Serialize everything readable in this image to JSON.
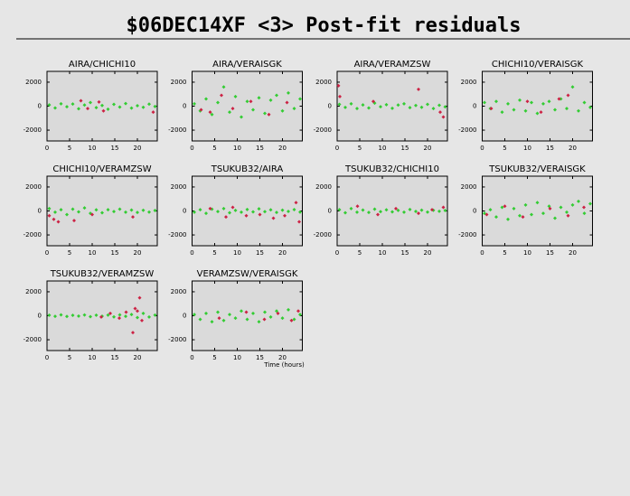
{
  "title": "$06DEC14XF <3> Post-fit residuals",
  "chart_data": [
    {
      "type": "scatter",
      "title": "AIRA/CHICHI10",
      "xlim": [
        0,
        24.4
      ],
      "ylim": [
        -2900,
        2900
      ],
      "xticks": [
        0,
        5,
        10,
        15,
        20
      ],
      "yticks": [
        2000,
        0,
        -2000
      ],
      "series": [
        {
          "color": "#33cc33",
          "x": [
            0.5,
            1.8,
            3.1,
            4.4,
            5.7,
            7,
            8.3,
            9.6,
            10.9,
            12.2,
            13.5,
            14.8,
            16.1,
            17.4,
            18.7,
            20,
            21.3,
            22.6,
            23.9
          ],
          "values": [
            100,
            -150,
            200,
            -50,
            180,
            -220,
            90,
            300,
            -120,
            60,
            -250,
            150,
            -80,
            220,
            -160,
            40,
            -90,
            170,
            -30
          ]
        },
        {
          "color": "#cc2244",
          "x": [
            7.5,
            9,
            11.5,
            12.5,
            23.5
          ],
          "values": [
            450,
            -200,
            350,
            -400,
            -500
          ]
        }
      ]
    },
    {
      "type": "scatter",
      "title": "AIRA/VERAISGK",
      "xlim": [
        0,
        24.4
      ],
      "ylim": [
        -2900,
        2900
      ],
      "xticks": [
        0,
        5,
        10,
        15,
        20
      ],
      "yticks": [
        2000,
        0,
        -2000
      ],
      "series": [
        {
          "color": "#33cc33",
          "x": [
            0.5,
            1.8,
            3.1,
            4.4,
            5.7,
            7,
            8.3,
            9.6,
            10.9,
            12.2,
            13.5,
            14.8,
            16.1,
            17.4,
            18.7,
            20,
            21.3,
            22.6,
            23.9
          ],
          "values": [
            200,
            -400,
            600,
            -700,
            300,
            1600,
            -500,
            800,
            -900,
            400,
            -300,
            700,
            -600,
            500,
            900,
            -400,
            1100,
            -200,
            600
          ]
        },
        {
          "color": "#cc2244",
          "x": [
            2,
            4,
            6.5,
            9,
            13,
            17,
            21
          ],
          "values": [
            -300,
            -500,
            900,
            -200,
            400,
            -700,
            300
          ]
        }
      ]
    },
    {
      "type": "scatter",
      "title": "AIRA/VERAMZSW",
      "xlim": [
        0,
        24.4
      ],
      "ylim": [
        -2900,
        2900
      ],
      "xticks": [
        0,
        5,
        10,
        15,
        20
      ],
      "yticks": [
        2000,
        0,
        -2000
      ],
      "series": [
        {
          "color": "#33cc33",
          "x": [
            0.5,
            1.8,
            3.1,
            4.4,
            5.7,
            7,
            8.3,
            9.6,
            10.9,
            12.2,
            13.5,
            14.8,
            16.1,
            17.4,
            18.7,
            20,
            21.3,
            22.6,
            23.9
          ],
          "values": [
            150,
            -100,
            200,
            -200,
            100,
            -150,
            250,
            -50,
            120,
            -180,
            90,
            200,
            -120,
            60,
            -90,
            150,
            -200,
            80,
            -60
          ]
        },
        {
          "color": "#cc2244",
          "x": [
            0.3,
            0.6,
            8,
            18,
            22.8,
            23.5
          ],
          "values": [
            1700,
            800,
            400,
            1400,
            -500,
            -900
          ]
        }
      ]
    },
    {
      "type": "scatter",
      "title": "CHICHI10/VERAISGK",
      "xlim": [
        0,
        24.4
      ],
      "ylim": [
        -2900,
        2900
      ],
      "xticks": [
        0,
        5,
        10,
        15,
        20
      ],
      "yticks": [
        2000,
        0,
        -2000
      ],
      "series": [
        {
          "color": "#33cc33",
          "x": [
            0.5,
            1.8,
            3.1,
            4.4,
            5.7,
            7,
            8.3,
            9.6,
            10.9,
            12.2,
            13.5,
            14.8,
            16.1,
            17.4,
            18.7,
            20,
            21.3,
            22.6,
            23.9
          ],
          "values": [
            300,
            -200,
            400,
            -500,
            200,
            -300,
            500,
            -400,
            300,
            -600,
            200,
            400,
            -300,
            600,
            -200,
            1600,
            -400,
            300,
            -100
          ]
        },
        {
          "color": "#cc2244",
          "x": [
            2,
            10,
            13,
            17,
            19
          ],
          "values": [
            -200,
            400,
            -500,
            600,
            900
          ]
        }
      ]
    },
    {
      "type": "scatter",
      "title": "CHICHI10/VERAMZSW",
      "xlim": [
        0,
        24.4
      ],
      "ylim": [
        -2900,
        2900
      ],
      "xticks": [
        0,
        5,
        10,
        15,
        20
      ],
      "yticks": [
        2000,
        0,
        -2000
      ],
      "series": [
        {
          "color": "#33cc33",
          "x": [
            0.5,
            1.8,
            3.1,
            4.4,
            5.7,
            7,
            8.3,
            9.6,
            10.9,
            12.2,
            13.5,
            14.8,
            16.1,
            17.4,
            18.7,
            20,
            21.3,
            22.6,
            23.9
          ],
          "values": [
            200,
            -100,
            100,
            -300,
            150,
            -80,
            250,
            -200,
            90,
            -150,
            100,
            -50,
            150,
            -100,
            80,
            -120,
            60,
            -90,
            40
          ]
        },
        {
          "color": "#cc2244",
          "x": [
            0.5,
            1.5,
            2.5,
            6,
            10,
            19
          ],
          "values": [
            -400,
            -700,
            -900,
            -800,
            -300,
            -500
          ]
        }
      ]
    },
    {
      "type": "scatter",
      "title": "TSUKUB32/AIRA",
      "xlim": [
        0,
        24.4
      ],
      "ylim": [
        -2900,
        2900
      ],
      "xticks": [
        0,
        5,
        10,
        15,
        20
      ],
      "yticks": [
        2000,
        0,
        -2000
      ],
      "series": [
        {
          "color": "#33cc33",
          "x": [
            0.5,
            1.8,
            3.1,
            4.4,
            5.7,
            7,
            8.3,
            9.6,
            10.9,
            12.2,
            13.5,
            14.8,
            16.1,
            17.4,
            18.7,
            20,
            21.3,
            22.6,
            23.9
          ],
          "values": [
            -100,
            100,
            -200,
            150,
            -50,
            200,
            -150,
            50,
            -100,
            120,
            -80,
            180,
            -60,
            90,
            -120,
            70,
            -40,
            110,
            -90
          ]
        },
        {
          "color": "#cc2244",
          "x": [
            4,
            7.5,
            9,
            12,
            15,
            18,
            20.5,
            23,
            23.7
          ],
          "values": [
            200,
            -500,
            300,
            -400,
            -300,
            -600,
            -400,
            700,
            -900
          ]
        }
      ]
    },
    {
      "type": "scatter",
      "title": "TSUKUB32/CHICHI10",
      "xlim": [
        0,
        24.4
      ],
      "ylim": [
        -2900,
        2900
      ],
      "xticks": [
        0,
        5,
        10,
        15,
        20
      ],
      "yticks": [
        2000,
        0,
        -2000
      ],
      "series": [
        {
          "color": "#33cc33",
          "x": [
            0.5,
            1.8,
            3.1,
            4.4,
            5.7,
            7,
            8.3,
            9.6,
            10.9,
            12.2,
            13.5,
            14.8,
            16.1,
            17.4,
            18.7,
            20,
            21.3,
            22.6,
            23.9
          ],
          "values": [
            100,
            -150,
            200,
            -100,
            80,
            -120,
            150,
            -60,
            90,
            -80,
            50,
            -100,
            120,
            -40,
            70,
            -90,
            60,
            -30,
            40
          ]
        },
        {
          "color": "#cc2244",
          "x": [
            4.5,
            9,
            13,
            18,
            21,
            23.5
          ],
          "values": [
            400,
            -300,
            200,
            -200,
            100,
            300
          ]
        }
      ]
    },
    {
      "type": "scatter",
      "title": "TSUKUB32/VERAISGK",
      "xlim": [
        0,
        24.4
      ],
      "ylim": [
        -2900,
        2900
      ],
      "xticks": [
        0,
        5,
        10,
        15,
        20
      ],
      "yticks": [
        2000,
        0,
        -2000
      ],
      "series": [
        {
          "color": "#33cc33",
          "x": [
            0.5,
            1.8,
            3.1,
            4.4,
            5.7,
            7,
            8.3,
            9.6,
            10.9,
            12.2,
            13.5,
            14.8,
            16.1,
            17.4,
            18.7,
            20,
            21.3,
            22.6,
            23.9
          ],
          "values": [
            -200,
            100,
            -500,
            300,
            -700,
            200,
            -400,
            500,
            -300,
            700,
            -200,
            400,
            -600,
            300,
            -100,
            500,
            800,
            -200,
            600
          ]
        },
        {
          "color": "#cc2244",
          "x": [
            1,
            5,
            9,
            15,
            19,
            22.5
          ],
          "values": [
            -300,
            400,
            -500,
            200,
            -400,
            300
          ]
        }
      ]
    },
    {
      "type": "scatter",
      "title": "TSUKUB32/VERAMZSW",
      "xlim": [
        0,
        24.4
      ],
      "ylim": [
        -2900,
        2900
      ],
      "xticks": [
        0,
        5,
        10,
        15,
        20
      ],
      "yticks": [
        2000,
        0,
        -2000
      ],
      "series": [
        {
          "color": "#33cc33",
          "x": [
            0.5,
            1.8,
            3.1,
            4.4,
            5.7,
            7,
            8.3,
            9.6,
            10.9,
            12.2,
            13.5,
            14.8,
            16.1,
            17.4,
            18.7,
            20,
            21.3,
            22.6,
            23.9
          ],
          "values": [
            50,
            -50,
            80,
            -60,
            40,
            -30,
            70,
            -80,
            50,
            -40,
            60,
            -90,
            80,
            -50,
            100,
            -150,
            200,
            -100,
            60
          ]
        },
        {
          "color": "#cc2244",
          "x": [
            12,
            14,
            16,
            17.5,
            19,
            19.5,
            20,
            20.5,
            21
          ],
          "values": [
            -100,
            200,
            -200,
            300,
            -1400,
            600,
            400,
            1500,
            -400
          ]
        }
      ]
    },
    {
      "type": "scatter",
      "title": "VERAMZSW/VERAISGK",
      "xlabel": "Time (hours)",
      "xlim": [
        0,
        24.4
      ],
      "ylim": [
        -2900,
        2900
      ],
      "xticks": [
        0,
        5,
        10,
        15,
        20
      ],
      "yticks": [
        2000,
        0,
        -2000
      ],
      "series": [
        {
          "color": "#33cc33",
          "x": [
            0.5,
            1.8,
            3.1,
            4.4,
            5.7,
            7,
            8.3,
            9.6,
            10.9,
            12.2,
            13.5,
            14.8,
            16.1,
            17.4,
            18.7,
            20,
            21.3,
            22.6,
            23.9
          ],
          "values": [
            100,
            -300,
            200,
            -500,
            300,
            -400,
            100,
            -200,
            400,
            -300,
            200,
            -500,
            300,
            -100,
            400,
            -200,
            500,
            -300,
            100
          ]
        },
        {
          "color": "#cc2244",
          "x": [
            6,
            12,
            16,
            19,
            22,
            23.5
          ],
          "values": [
            -200,
            300,
            -300,
            200,
            -400,
            400
          ]
        }
      ]
    }
  ]
}
